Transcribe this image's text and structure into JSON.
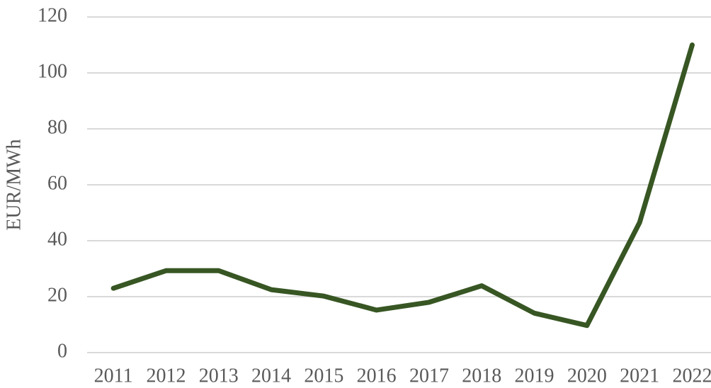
{
  "chart_data": {
    "type": "line",
    "y_label": "EUR/MWh",
    "categories": [
      "2011",
      "2012",
      "2013",
      "2014",
      "2015",
      "2016",
      "2017",
      "2018",
      "2019",
      "2020",
      "2021",
      "2022"
    ],
    "series": [
      {
        "color": "#375623",
        "values": [
          23,
          29.3,
          29.3,
          22.5,
          20.2,
          15.2,
          18,
          23.9,
          14.1,
          9.7,
          46.5,
          110
        ]
      }
    ],
    "ylim": [
      0,
      120
    ],
    "yticks": [
      0,
      20,
      40,
      60,
      80,
      100,
      120
    ],
    "grid": true
  }
}
